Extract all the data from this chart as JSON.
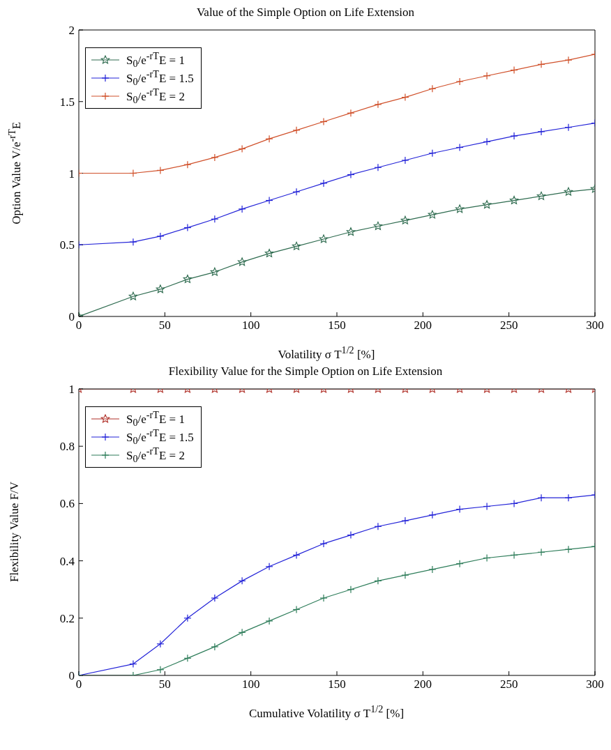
{
  "chart_data": [
    {
      "type": "line",
      "title": "Value of the Simple Option on Life Extension",
      "xlabel": "Volatility σ T$^{1/2}$ [%]",
      "ylabel": "Option Value V/e$^{-rT}$E",
      "x": [
        0,
        31.6,
        47.4,
        63.2,
        79,
        94.9,
        110.7,
        126.5,
        142.3,
        158.1,
        173.9,
        189.7,
        205.5,
        221.4,
        237.2,
        253,
        268.8,
        284.6,
        300
      ],
      "xlim": [
        0,
        300
      ],
      "xticks": [
        0,
        50,
        100,
        150,
        200,
        250,
        300
      ],
      "ylim": [
        0,
        2
      ],
      "yticks": [
        0,
        0.5,
        1,
        1.5,
        2
      ],
      "grid": false,
      "legend": "top left",
      "line_style": "solid",
      "series": [
        {
          "name": "S$_{0}$/e$^{-rT}$E = 1",
          "color": "#2e6b4f",
          "marker": "star",
          "values": [
            0,
            0.14,
            0.19,
            0.26,
            0.31,
            0.38,
            0.44,
            0.49,
            0.54,
            0.59,
            0.63,
            0.67,
            0.71,
            0.75,
            0.78,
            0.81,
            0.84,
            0.87,
            0.89
          ]
        },
        {
          "name": "S$_{0}$/e$^{-rT}$E = 1.5",
          "color": "#2323d8",
          "marker": "cross",
          "values": [
            0.5,
            0.52,
            0.56,
            0.62,
            0.68,
            0.75,
            0.81,
            0.87,
            0.93,
            0.99,
            1.04,
            1.09,
            1.14,
            1.18,
            1.22,
            1.26,
            1.29,
            1.32,
            1.35
          ]
        },
        {
          "name": "S$_{0}$/e$^{-rT}$E = 2",
          "color": "#d0502a",
          "marker": "cross",
          "values": [
            1,
            1,
            1.02,
            1.06,
            1.11,
            1.17,
            1.24,
            1.3,
            1.36,
            1.42,
            1.48,
            1.53,
            1.59,
            1.64,
            1.68,
            1.72,
            1.76,
            1.79,
            1.83
          ]
        }
      ]
    },
    {
      "type": "line",
      "title": "Flexibility Value for the Simple Option on Life Extension",
      "xlabel": "Cumulative Volatility σ T$^{1/2}$ [%]",
      "ylabel": "Flexibility Value F/V",
      "x": [
        0,
        31.6,
        47.4,
        63.2,
        79,
        94.9,
        110.7,
        126.5,
        142.3,
        158.1,
        173.9,
        189.7,
        205.5,
        221.4,
        237.2,
        253,
        268.8,
        284.6,
        300
      ],
      "xlim": [
        0,
        300
      ],
      "xticks": [
        0,
        50,
        100,
        150,
        200,
        250,
        300
      ],
      "ylim": [
        0,
        1
      ],
      "yticks": [
        0,
        0.2,
        0.4,
        0.6,
        0.8,
        1
      ],
      "grid": false,
      "legend": "top left",
      "line_style": "solid",
      "series": [
        {
          "name": "S$_{0}$/e$^{-rT}$E = 1",
          "color": "#b03028",
          "marker": "star",
          "values": [
            1,
            1,
            1,
            1,
            1,
            1,
            1,
            1,
            1,
            1,
            1,
            1,
            1,
            1,
            1,
            1,
            1,
            1,
            1
          ]
        },
        {
          "name": "S$_{0}$/e$^{-rT}$E = 1.5",
          "color": "#2323d8",
          "marker": "cross",
          "values": [
            0,
            0.04,
            0.11,
            0.2,
            0.27,
            0.33,
            0.38,
            0.42,
            0.46,
            0.49,
            0.52,
            0.54,
            0.56,
            0.58,
            0.59,
            0.6,
            0.62,
            0.62,
            0.63
          ]
        },
        {
          "name": "S$_{0}$/e$^{-rT}$E = 2",
          "color": "#2e7d5a",
          "marker": "cross",
          "values": [
            0,
            0,
            0.02,
            0.06,
            0.1,
            0.15,
            0.19,
            0.23,
            0.27,
            0.3,
            0.33,
            0.35,
            0.37,
            0.39,
            0.41,
            0.42,
            0.43,
            0.44,
            0.45
          ]
        }
      ]
    }
  ]
}
